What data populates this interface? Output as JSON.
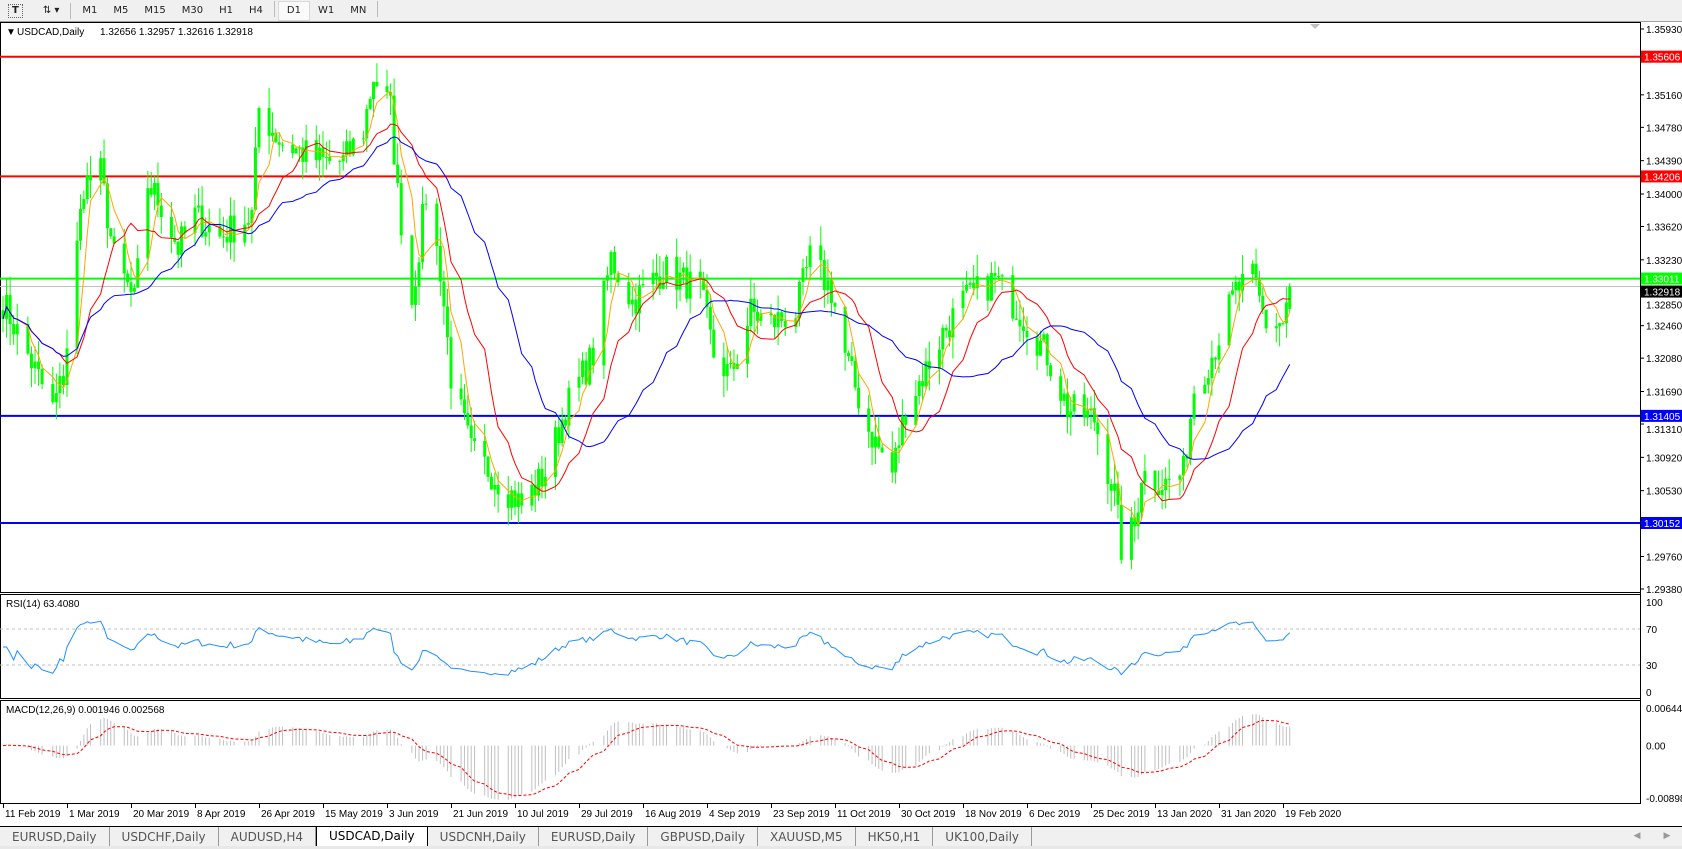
{
  "toolbar": {
    "icons": [
      "text-tool-icon",
      "period-switch-icon"
    ],
    "periods": [
      "M1",
      "M5",
      "M15",
      "M30",
      "H1",
      "H4",
      "D1",
      "W1",
      "MN"
    ],
    "active_period": "D1"
  },
  "chart_data": {
    "type": "candlestick",
    "title": "USDCAD,Daily",
    "ohlc_readout": "1.32656 1.32957 1.32616 1.32918",
    "y_ticks": [
      "1.35930",
      "1.35160",
      "1.34780",
      "1.34390",
      "1.34000",
      "1.33620",
      "1.33230",
      "1.32850",
      "1.32460",
      "1.32080",
      "1.31690",
      "1.31310",
      "1.30920",
      "1.30530",
      "1.29760",
      "1.29380"
    ],
    "ylim": [
      1.2938,
      1.3593
    ],
    "x_ticks": [
      "11 Feb 2019",
      "1 Mar 2019",
      "20 Mar 2019",
      "8 Apr 2019",
      "26 Apr 2019",
      "15 May 2019",
      "3 Jun 2019",
      "21 Jun 2019",
      "10 Jul 2019",
      "29 Jul 2019",
      "16 Aug 2019",
      "4 Sep 2019",
      "23 Sep 2019",
      "11 Oct 2019",
      "30 Oct 2019",
      "18 Nov 2019",
      "6 Dec 2019",
      "25 Dec 2019",
      "13 Jan 2020",
      "31 Jan 2020",
      "19 Feb 2020"
    ],
    "candle_color": "#00ff00",
    "close_path": [
      [
        "2019-02-11",
        1.3274
      ],
      [
        "2019-02-18",
        1.3212
      ],
      [
        "2019-02-25",
        1.3149
      ],
      [
        "2019-02-28",
        1.3187
      ],
      [
        "2019-03-06",
        1.3412
      ],
      [
        "2019-03-11",
        1.3425
      ],
      [
        "2019-03-15",
        1.3325
      ],
      [
        "2019-03-21",
        1.3274
      ],
      [
        "2019-03-25",
        1.3412
      ],
      [
        "2019-03-29",
        1.3387
      ],
      [
        "2019-04-03",
        1.3337
      ],
      [
        "2019-04-08",
        1.3375
      ],
      [
        "2019-04-15",
        1.335
      ],
      [
        "2019-04-24",
        1.3375
      ],
      [
        "2019-04-26",
        1.35
      ],
      [
        "2019-05-02",
        1.3463
      ],
      [
        "2019-05-08",
        1.345
      ],
      [
        "2019-05-15",
        1.3438
      ],
      [
        "2019-05-21",
        1.3438
      ],
      [
        "2019-05-27",
        1.3475
      ],
      [
        "2019-05-30",
        1.3538
      ],
      [
        "2019-06-04",
        1.35
      ],
      [
        "2019-06-06",
        1.34
      ],
      [
        "2019-06-10",
        1.3274
      ],
      [
        "2019-06-14",
        1.34
      ],
      [
        "2019-06-18",
        1.3312
      ],
      [
        "2019-06-21",
        1.3187
      ],
      [
        "2019-06-27",
        1.3099
      ],
      [
        "2019-07-03",
        1.3074
      ],
      [
        "2019-07-12",
        1.3036
      ],
      [
        "2019-07-19",
        1.3074
      ],
      [
        "2019-07-25",
        1.3149
      ],
      [
        "2019-08-02",
        1.3212
      ],
      [
        "2019-08-07",
        1.3325
      ],
      [
        "2019-08-13",
        1.3274
      ],
      [
        "2019-08-22",
        1.3312
      ],
      [
        "2019-09-02",
        1.3287
      ],
      [
        "2019-09-06",
        1.3212
      ],
      [
        "2019-09-11",
        1.3187
      ],
      [
        "2019-09-17",
        1.3262
      ],
      [
        "2019-09-23",
        1.3249
      ],
      [
        "2019-09-30",
        1.3262
      ],
      [
        "2019-10-04",
        1.3325
      ],
      [
        "2019-10-10",
        1.3287
      ],
      [
        "2019-10-14",
        1.3212
      ],
      [
        "2019-10-21",
        1.3124
      ],
      [
        "2019-10-28",
        1.3074
      ],
      [
        "2019-11-01",
        1.3149
      ],
      [
        "2019-11-06",
        1.3187
      ],
      [
        "2019-11-12",
        1.3237
      ],
      [
        "2019-11-18",
        1.3274
      ],
      [
        "2019-11-27",
        1.33
      ],
      [
        "2019-12-04",
        1.3262
      ],
      [
        "2019-12-06",
        1.3249
      ],
      [
        "2019-12-12",
        1.3212
      ],
      [
        "2019-12-18",
        1.3149
      ],
      [
        "2019-12-26",
        1.3137
      ],
      [
        "2020-01-01",
        1.3049
      ],
      [
        "2020-01-03",
        1.2986
      ],
      [
        "2020-01-07",
        1.3011
      ],
      [
        "2020-01-09",
        1.3074
      ],
      [
        "2020-01-16",
        1.3061
      ],
      [
        "2020-01-21",
        1.3074
      ],
      [
        "2020-01-24",
        1.3174
      ],
      [
        "2020-01-29",
        1.3212
      ],
      [
        "2020-02-05",
        1.3287
      ],
      [
        "2020-02-10",
        1.33
      ],
      [
        "2020-02-14",
        1.3249
      ],
      [
        "2020-02-19",
        1.3249
      ],
      [
        "2020-02-21",
        1.32918
      ]
    ],
    "moving_average_colors": [
      "#ffa500",
      "#ff0000",
      "#0000ff"
    ],
    "hlines": [
      {
        "label": "1.35606",
        "value": 1.35606,
        "color": "#ff0000"
      },
      {
        "label": "1.34206",
        "value": 1.34206,
        "color": "#ff0000"
      },
      {
        "label": "1.33011",
        "value": 1.33011,
        "color": "#00ff00"
      },
      {
        "label": "1.31405",
        "value": 1.31405,
        "color": "#0000ff"
      },
      {
        "label": "1.30152",
        "value": 1.30152,
        "color": "#0000ff"
      }
    ],
    "bid_line": {
      "label": "1.32918",
      "value": 1.32918,
      "color": "#c0c0c0"
    },
    "rsi": {
      "title": "RSI(14) 63.4080",
      "ticks": [
        "100",
        "70",
        "30",
        "0"
      ],
      "levels": [
        70,
        30
      ],
      "color": "#1e90ff"
    },
    "macd": {
      "title": "MACD(12,26,9) 0.001946 0.002568",
      "ticks": [
        "0.006448",
        "0.00",
        "-0.008982"
      ],
      "ylim": [
        -0.008982,
        0.006448
      ],
      "histogram_color": "#c0c0c0",
      "signal_color": "#ff0000"
    }
  },
  "tabs": [
    {
      "label": "EURUSD,Daily"
    },
    {
      "label": "USDCHF,Daily"
    },
    {
      "label": "AUDUSD,H4"
    },
    {
      "label": "USDCAD,Daily",
      "active": true
    },
    {
      "label": "USDCNH,Daily"
    },
    {
      "label": "EURUSD,Daily"
    },
    {
      "label": "GBPUSD,Daily"
    },
    {
      "label": "XAUUSD,M5"
    },
    {
      "label": "HK50,H1"
    },
    {
      "label": "UK100,Daily"
    }
  ]
}
